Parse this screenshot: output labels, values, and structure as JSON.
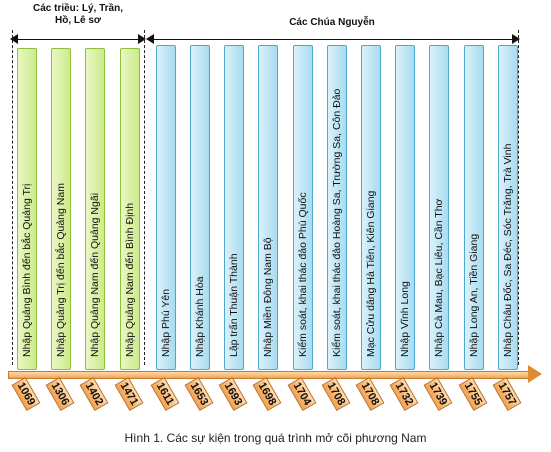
{
  "groups": {
    "dynasties_label_line1": "Các triều: Lý, Trần,",
    "dynasties_label_line2": "Hồ, Lê sơ",
    "nguyen_lords_label": "Các Chúa Nguyễn"
  },
  "events": [
    {
      "year": "1069",
      "label": "Nhập Quảng Bình đến bắc Quảng Trị",
      "group": "dynasties"
    },
    {
      "year": "1306",
      "label": "Nhập Quảng Trị đến bắc Quảng Nam",
      "group": "dynasties"
    },
    {
      "year": "1402",
      "label": "Nhập Quảng Nam đến Quảng Ngãi",
      "group": "dynasties"
    },
    {
      "year": "1471",
      "label": "Nhập Quảng Nam đến Bình Định",
      "group": "dynasties"
    },
    {
      "year": "1611",
      "label": "Nhập Phú Yên",
      "group": "nguyen"
    },
    {
      "year": "1653",
      "label": "Nhập Khánh Hòa",
      "group": "nguyen"
    },
    {
      "year": "1693",
      "label": "Lập trấn Thuận Thành",
      "group": "nguyen"
    },
    {
      "year": "1698",
      "label": "Nhập Miền Đông Nam Bộ",
      "group": "nguyen"
    },
    {
      "year": "1704",
      "label": "Kiểm soát, khai thác đảo Phú Quốc",
      "group": "nguyen"
    },
    {
      "year": "1708",
      "label": "Kiểm soát, khai thác đảo Hoàng Sa, Trường Sa, Côn Đảo",
      "group": "nguyen"
    },
    {
      "year": "1708",
      "label": "Mạc Cửu dâng Hà Tiên, Kiên Giang",
      "group": "nguyen"
    },
    {
      "year": "1732",
      "label": "Nhập Vĩnh Long",
      "group": "nguyen"
    },
    {
      "year": "1739",
      "label": "Nhập Cà Mau, Bạc Liêu, Cần Thơ",
      "group": "nguyen"
    },
    {
      "year": "1755",
      "label": "Nhập Long An, Tiền Giang",
      "group": "nguyen"
    },
    {
      "year": "1757",
      "label": "Nhập Châu Đốc, Sa Đéc, Sóc Trăng, Trà Vinh",
      "group": "nguyen"
    }
  ],
  "caption": "Hình 1. Các sự kiện trong quá trình mở cõi phương Nam",
  "colors": {
    "dynasties_bar": "#cdea8a",
    "nguyen_bar": "#a7dcf0",
    "timeline": "#f2a657"
  }
}
